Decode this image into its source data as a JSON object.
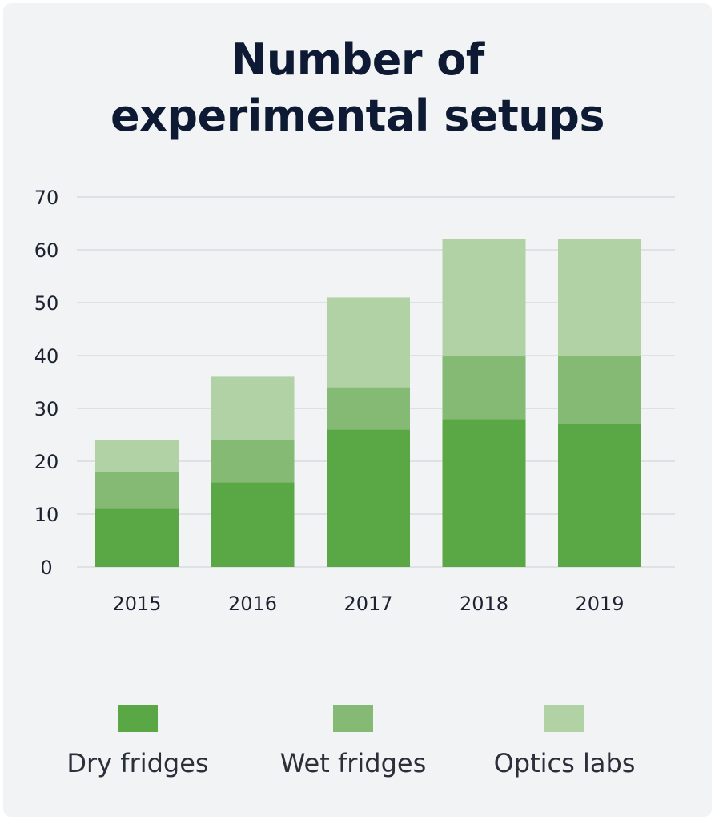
{
  "chart_data": {
    "type": "bar",
    "stacked": true,
    "title_lines": [
      "Number of",
      "experimental setups"
    ],
    "xlabel": "",
    "ylabel": "",
    "categories": [
      "2015",
      "2016",
      "2017",
      "2018",
      "2019"
    ],
    "ylim": [
      0,
      70
    ],
    "yticks": [
      0,
      10,
      20,
      30,
      40,
      50,
      60,
      70
    ],
    "grid": true,
    "legend_position": "bottom",
    "series": [
      {
        "name": "Dry fridges",
        "color": "#5aa845",
        "values": [
          11,
          16,
          26,
          28,
          27
        ]
      },
      {
        "name": "Wet fridges",
        "color": "#84ba73",
        "values": [
          7,
          8,
          8,
          12,
          13
        ]
      },
      {
        "name": "Optics labs",
        "color": "#b0d2a5",
        "values": [
          6,
          12,
          17,
          22,
          22
        ]
      }
    ]
  }
}
